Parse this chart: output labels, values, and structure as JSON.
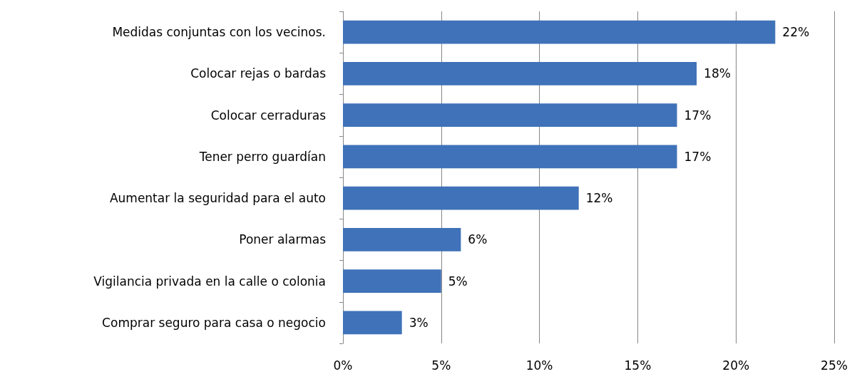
{
  "chart_data": {
    "type": "bar",
    "orientation": "horizontal",
    "categories": [
      "Medidas conjuntas con los vecinos.",
      "Colocar rejas o bardas",
      "Colocar cerraduras",
      "Tener perro guardían",
      "Aumentar la seguridad para el auto",
      "Poner alarmas",
      "Vigilancia privada en la calle o colonia",
      "Comprar seguro para casa o negocio"
    ],
    "values": [
      22,
      18,
      17,
      17,
      12,
      6,
      5,
      3
    ],
    "value_labels": [
      "22%",
      "18%",
      "17%",
      "17%",
      "12%",
      "6%",
      "5%",
      "3%"
    ],
    "color": "#3f72b8",
    "xlim": [
      0,
      25
    ],
    "xticks": [
      {
        "value": 0,
        "label": "0%"
      },
      {
        "value": 5,
        "label": "5%"
      },
      {
        "value": 10,
        "label": "10%"
      },
      {
        "value": 15,
        "label": "15%"
      },
      {
        "value": 20,
        "label": "20%"
      },
      {
        "value": 25,
        "label": "25%"
      }
    ],
    "grid": "x"
  }
}
